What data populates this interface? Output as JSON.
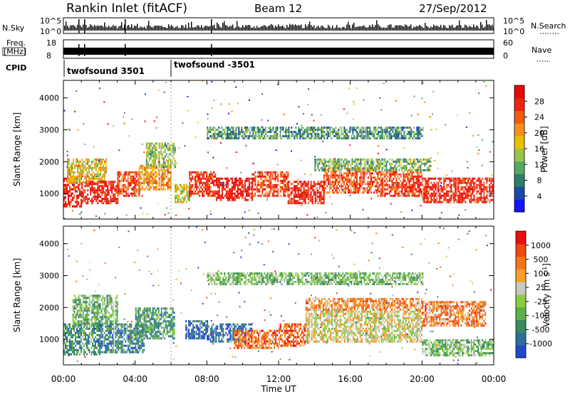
{
  "header": {
    "station": "Rankin Inlet (fitACF)",
    "beam": "Beam 12",
    "date": "27/Sep/2012"
  },
  "top_panels": {
    "nsky_label": "N.Sky",
    "nsky_ticks": [
      "10^5",
      "10^0"
    ],
    "nsearch_label": "N.Search",
    "nsearch_ticks": [
      "10^5",
      "10^0"
    ],
    "freq_label_1": "Freq.",
    "freq_label_2": "[MHz]",
    "freq_ticks": [
      "18",
      "8"
    ],
    "nave_label": "Nave",
    "nave_ticks": [
      "60",
      "0"
    ],
    "cpid_label": "CPID",
    "cpid_entries": [
      {
        "label": "twofsound 3501",
        "start_hour": 0
      },
      {
        "label": "twofsound -3501",
        "start_hour": 6
      }
    ]
  },
  "x_axis": {
    "label": "Time UT",
    "ticks": [
      "00:00",
      "04:00",
      "08:00",
      "12:00",
      "16:00",
      "20:00",
      "00:00"
    ],
    "range_hours": [
      0,
      24
    ]
  },
  "chart_data": [
    {
      "type": "heatmap",
      "name": "power",
      "xlabel": "Time UT",
      "ylabel": "Slant Range [km]",
      "yticks": [
        "1000",
        "2000",
        "3000",
        "4000"
      ],
      "ylim": [
        200,
        4550
      ],
      "colorbar_label": "Power [dB]",
      "colorbar_ticks": [
        "4",
        "8",
        "12",
        "16",
        "20",
        "24",
        "28"
      ],
      "colorbar_colors": [
        "#1414ff",
        "#1a4aa8",
        "#2e7c6a",
        "#58a860",
        "#9ac448",
        "#e8c000",
        "#f7901a",
        "#f25a10",
        "#ee2410",
        "#e80808"
      ],
      "segments": [
        {
          "x": [
            0.0,
            1.0
          ],
          "y": [
            600,
            1500
          ],
          "level": 0.9
        },
        {
          "x": [
            0.2,
            2.4
          ],
          "y": [
            1300,
            2100
          ],
          "level": 0.55
        },
        {
          "x": [
            1.0,
            3.0
          ],
          "y": [
            700,
            1400
          ],
          "level": 0.92
        },
        {
          "x": [
            3.0,
            4.2
          ],
          "y": [
            900,
            1700
          ],
          "level": 0.8
        },
        {
          "x": [
            4.2,
            6.0
          ],
          "y": [
            1100,
            1900
          ],
          "level": 0.65
        },
        {
          "x": [
            4.6,
            6.2
          ],
          "y": [
            1800,
            2600
          ],
          "level": 0.45
        },
        {
          "x": [
            6.2,
            7.0
          ],
          "y": [
            700,
            1300
          ],
          "level": 0.5
        },
        {
          "x": [
            7.0,
            8.5
          ],
          "y": [
            900,
            1700
          ],
          "level": 0.85
        },
        {
          "x": [
            8.5,
            10.5
          ],
          "y": [
            800,
            1500
          ],
          "level": 0.95
        },
        {
          "x": [
            10.5,
            12.5
          ],
          "y": [
            900,
            1700
          ],
          "level": 0.82
        },
        {
          "x": [
            12.5,
            14.5
          ],
          "y": [
            700,
            1400
          ],
          "level": 0.9
        },
        {
          "x": [
            14.5,
            17.5
          ],
          "y": [
            1000,
            1800
          ],
          "level": 0.78
        },
        {
          "x": [
            14.0,
            20.5
          ],
          "y": [
            1700,
            2100
          ],
          "level": 0.38
        },
        {
          "x": [
            17.5,
            20.0
          ],
          "y": [
            900,
            1700
          ],
          "level": 0.82
        },
        {
          "x": [
            20.0,
            24.0
          ],
          "y": [
            700,
            1500
          ],
          "level": 0.88
        },
        {
          "x": [
            8.0,
            20.0
          ],
          "y": [
            2700,
            3100
          ],
          "level": 0.3
        }
      ]
    },
    {
      "type": "heatmap",
      "name": "velocity",
      "xlabel": "Time UT",
      "ylabel": "Slant Range [km]",
      "yticks": [
        "1000",
        "2000",
        "3000",
        "4000"
      ],
      "ylim": [
        200,
        4550
      ],
      "colorbar_label": "Velocity [m s^-1]",
      "colorbar_ticks": [
        "1000",
        "500",
        "100",
        "25",
        "-25",
        "-100",
        "-500",
        "-1000"
      ],
      "colorbar_colors": [
        "#2048c8",
        "#2e6e9e",
        "#3a8a5e",
        "#5ab04a",
        "#8ccc40",
        "#c8c8c0",
        "#f4a030",
        "#f07818",
        "#ee4a10",
        "#e81010"
      ],
      "segments": [
        {
          "x": [
            0.0,
            2.0
          ],
          "y": [
            500,
            1500
          ],
          "level": 0.25
        },
        {
          "x": [
            0.5,
            3.0
          ],
          "y": [
            1400,
            2400
          ],
          "level": 0.35
        },
        {
          "x": [
            2.0,
            4.5
          ],
          "y": [
            600,
            1500
          ],
          "level": 0.2
        },
        {
          "x": [
            4.0,
            6.2
          ],
          "y": [
            1000,
            2000
          ],
          "level": 0.28
        },
        {
          "x": [
            6.8,
            8.0
          ],
          "y": [
            1000,
            1600
          ],
          "level": 0.1
        },
        {
          "x": [
            8.0,
            10.5
          ],
          "y": [
            900,
            1500
          ],
          "level": 0.12
        },
        {
          "x": [
            9.5,
            12.0
          ],
          "y": [
            700,
            1300
          ],
          "level": 0.78
        },
        {
          "x": [
            12.0,
            13.5
          ],
          "y": [
            800,
            1500
          ],
          "level": 0.82
        },
        {
          "x": [
            13.5,
            20.0
          ],
          "y": [
            900,
            1900
          ],
          "level": 0.55
        },
        {
          "x": [
            13.5,
            20.0
          ],
          "y": [
            1900,
            2300
          ],
          "level": 0.7
        },
        {
          "x": [
            20.0,
            24.0
          ],
          "y": [
            500,
            1000
          ],
          "level": 0.38
        },
        {
          "x": [
            20.0,
            23.5
          ],
          "y": [
            1400,
            2200
          ],
          "level": 0.75
        },
        {
          "x": [
            8.0,
            20.0
          ],
          "y": [
            2700,
            3100
          ],
          "level": 0.4
        }
      ]
    }
  ]
}
